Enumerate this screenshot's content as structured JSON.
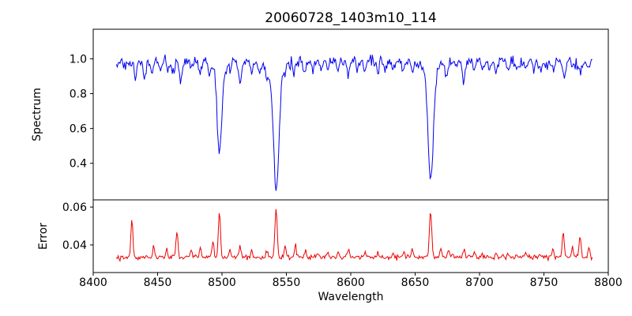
{
  "chart_data": {
    "type": "line",
    "title": "20060728_1403m10_114",
    "xlabel": "Wavelength",
    "xlim": [
      8400,
      8800
    ],
    "x_ticks": [
      8400,
      8450,
      8500,
      8550,
      8600,
      8650,
      8700,
      8750,
      8800
    ],
    "x_tick_labels": [
      "8400",
      "8450",
      "8500",
      "8550",
      "8600",
      "8650",
      "8700",
      "8750",
      "8800"
    ],
    "x_range_data": [
      8418,
      8788
    ],
    "step": 0.7,
    "seed": 42,
    "grid": false,
    "legend": "none",
    "panels": [
      {
        "name": "spectrum",
        "ylabel": "Spectrum",
        "color": "#0000ee",
        "ylim": [
          0.19,
          1.17
        ],
        "y_ticks": [
          0.4,
          0.6,
          0.8,
          1.0
        ],
        "y_tick_labels": [
          "0.4",
          "0.6",
          "0.8",
          "1.0"
        ],
        "continuum": 0.985,
        "noise_sigma": 0.017,
        "line_columns": [
          "center_angstrom",
          "depth",
          "sigma_angstrom"
        ],
        "main_lines": [
          [
            8498.0,
            0.48,
            1.7
          ],
          [
            8542.1,
            0.67,
            2.1
          ],
          [
            8662.1,
            0.63,
            2.0
          ]
        ],
        "minor_lines": [
          [
            8424,
            0.05,
            1.0
          ],
          [
            8429,
            0.04,
            0.9
          ],
          [
            8433,
            0.09,
            1.0
          ],
          [
            8440,
            0.11,
            1.1
          ],
          [
            8446,
            0.07,
            0.9
          ],
          [
            8452,
            0.05,
            0.9
          ],
          [
            8458,
            0.04,
            0.9
          ],
          [
            8462,
            0.07,
            0.9
          ],
          [
            8468,
            0.13,
            1.1
          ],
          [
            8476,
            0.05,
            0.9
          ],
          [
            8483,
            0.06,
            0.9
          ],
          [
            8490,
            0.06,
            0.9
          ],
          [
            8506,
            0.05,
            0.9
          ],
          [
            8514,
            0.12,
            1.2
          ],
          [
            8523,
            0.06,
            0.9
          ],
          [
            8529,
            0.05,
            0.9
          ],
          [
            8535,
            0.07,
            0.9
          ],
          [
            8549,
            0.05,
            0.9
          ],
          [
            8556,
            0.07,
            1.0
          ],
          [
            8564,
            0.05,
            0.9
          ],
          [
            8571,
            0.04,
            0.9
          ],
          [
            8577,
            0.04,
            0.9
          ],
          [
            8582,
            0.05,
            0.9
          ],
          [
            8590,
            0.04,
            0.9
          ],
          [
            8598,
            0.08,
            1.0
          ],
          [
            8605,
            0.04,
            0.9
          ],
          [
            8611,
            0.05,
            0.9
          ],
          [
            8621,
            0.07,
            0.9
          ],
          [
            8627,
            0.04,
            0.9
          ],
          [
            8633,
            0.05,
            0.9
          ],
          [
            8641,
            0.04,
            0.9
          ],
          [
            8648,
            0.08,
            1.0
          ],
          [
            8674,
            0.09,
            1.0
          ],
          [
            8682,
            0.05,
            0.9
          ],
          [
            8688,
            0.11,
            1.1
          ],
          [
            8696,
            0.05,
            0.9
          ],
          [
            8702,
            0.06,
            0.9
          ],
          [
            8708,
            0.04,
            0.9
          ],
          [
            8713,
            0.07,
            0.9
          ],
          [
            8722,
            0.05,
            0.9
          ],
          [
            8730,
            0.04,
            0.9
          ],
          [
            8736,
            0.05,
            0.9
          ],
          [
            8742,
            0.04,
            0.9
          ],
          [
            8747,
            0.04,
            0.9
          ],
          [
            8752,
            0.05,
            0.9
          ],
          [
            8757,
            0.06,
            0.9
          ],
          [
            8766,
            0.09,
            1.0
          ],
          [
            8772,
            0.05,
            0.9
          ],
          [
            8778,
            0.08,
            1.0
          ],
          [
            8784,
            0.05,
            0.9
          ]
        ]
      },
      {
        "name": "error",
        "ylabel": "Error",
        "color": "#ee0000",
        "ylim": [
          0.0254,
          0.0638
        ],
        "y_ticks": [
          0.04,
          0.06
        ],
        "y_tick_labels": [
          "0.04",
          "0.06"
        ],
        "baseline": 0.0335,
        "noise_sigma": 0.0006,
        "spike_columns": [
          "center_angstrom",
          "amplitude",
          "sigma_angstrom"
        ],
        "spikes": [
          [
            8430,
            0.0195,
            0.8
          ],
          [
            8447,
            0.006,
            0.7
          ],
          [
            8457,
            0.004,
            0.7
          ],
          [
            8465,
            0.013,
            0.8
          ],
          [
            8476,
            0.004,
            0.7
          ],
          [
            8483,
            0.005,
            0.7
          ],
          [
            8493,
            0.009,
            0.7
          ],
          [
            8498,
            0.024,
            0.8
          ],
          [
            8506,
            0.005,
            0.7
          ],
          [
            8514,
            0.006,
            0.8
          ],
          [
            8523,
            0.004,
            0.7
          ],
          [
            8535,
            0.004,
            0.7
          ],
          [
            8542,
            0.025,
            0.9
          ],
          [
            8549,
            0.007,
            0.7
          ],
          [
            8557,
            0.006,
            0.7
          ],
          [
            8565,
            0.003,
            0.7
          ],
          [
            8575,
            0.002,
            0.7
          ],
          [
            8582,
            0.003,
            0.7
          ],
          [
            8590,
            0.002,
            0.7
          ],
          [
            8598,
            0.004,
            0.8
          ],
          [
            8611,
            0.003,
            0.7
          ],
          [
            8621,
            0.003,
            0.7
          ],
          [
            8633,
            0.002,
            0.7
          ],
          [
            8641,
            0.002,
            0.7
          ],
          [
            8648,
            0.004,
            0.7
          ],
          [
            8662,
            0.0245,
            0.9
          ],
          [
            8670,
            0.005,
            0.7
          ],
          [
            8676,
            0.004,
            0.7
          ],
          [
            8688,
            0.004,
            0.8
          ],
          [
            8696,
            0.003,
            0.7
          ],
          [
            8702,
            0.002,
            0.7
          ],
          [
            8713,
            0.003,
            0.7
          ],
          [
            8722,
            0.002,
            0.7
          ],
          [
            8736,
            0.003,
            0.7
          ],
          [
            8747,
            0.002,
            0.7
          ],
          [
            8757,
            0.004,
            0.7
          ],
          [
            8765,
            0.0125,
            0.8
          ],
          [
            8772,
            0.005,
            0.7
          ],
          [
            8778,
            0.0115,
            0.8
          ],
          [
            8785,
            0.005,
            0.7
          ]
        ]
      }
    ]
  }
}
